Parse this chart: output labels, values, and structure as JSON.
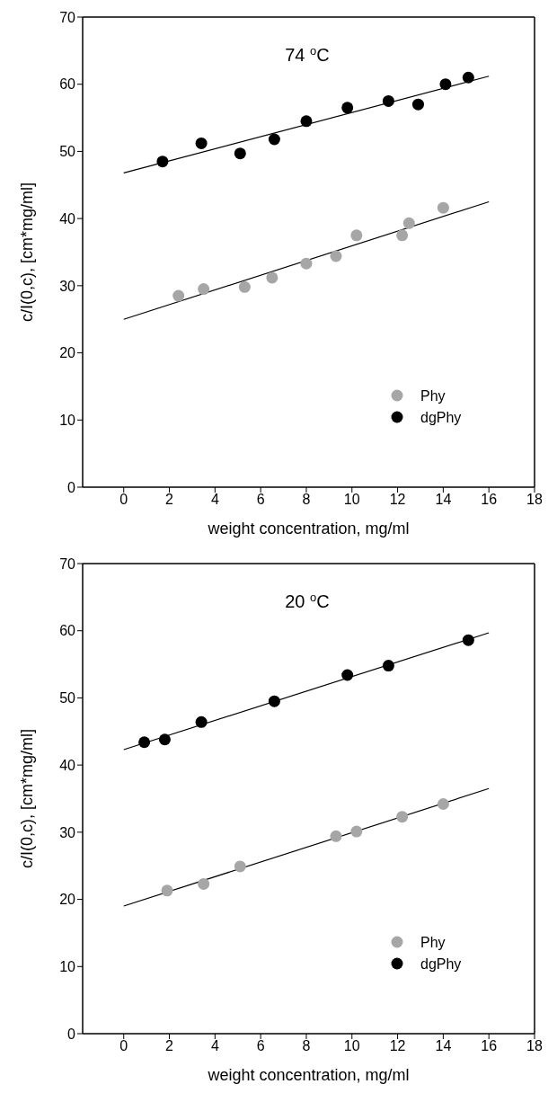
{
  "chart_data": [
    {
      "type": "scatter",
      "title": "74 $^{o}$C",
      "xlabel": "weight concentration, mg/ml",
      "ylabel": "c/I(0,c), [cm*mg/ml]",
      "xlim": [
        -1.8,
        18
      ],
      "xticks": [
        0,
        2,
        4,
        6,
        8,
        10,
        12,
        14,
        16,
        18
      ],
      "ylim": [
        0,
        70
      ],
      "yticks": [
        0,
        10,
        20,
        30,
        40,
        50,
        60,
        70
      ],
      "grid": false,
      "legend": "bottom right",
      "series": [
        {
          "name": "Phy",
          "marker": "circle",
          "color": "#a6a6a6",
          "x": [
            2.4,
            3.5,
            5.3,
            6.5,
            8,
            9.3,
            10.2,
            12.2,
            12.5,
            14
          ],
          "values": [
            28.5,
            29.5,
            29.8,
            31.2,
            33.3,
            34.4,
            37.5,
            37.5,
            39.3,
            41.6
          ]
        },
        {
          "name": "dgPhy",
          "marker": "circle",
          "color": "#000000",
          "x": [
            1.7,
            3.4,
            5.1,
            6.6,
            8,
            9.8,
            11.6,
            12.9,
            14.1,
            15.1
          ],
          "values": [
            48.5,
            51.2,
            49.7,
            51.8,
            54.5,
            56.5,
            57.5,
            57,
            60,
            61
          ]
        },
        {
          "type": "line",
          "marker": "none",
          "color": "#000000",
          "x": [
            0,
            16
          ],
          "values": [
            25,
            42.5
          ]
        },
        {
          "type": "line",
          "marker": "none",
          "color": "#000000",
          "x": [
            0,
            16
          ],
          "values": [
            46.8,
            61.2
          ]
        }
      ]
    },
    {
      "type": "scatter",
      "title": "20 $^{o}$C",
      "xlabel": "weight concentration, mg/ml",
      "ylabel": "c/I(0,c), [cm*mg/ml]",
      "xlim": [
        -1.8,
        18
      ],
      "xticks": [
        0,
        2,
        4,
        6,
        8,
        10,
        12,
        14,
        16,
        18
      ],
      "ylim": [
        0,
        70
      ],
      "yticks": [
        0,
        10,
        20,
        30,
        40,
        50,
        60,
        70
      ],
      "grid": false,
      "legend": "bottom right",
      "series": [
        {
          "name": "Phy",
          "marker": "circle",
          "color": "#a6a6a6",
          "x": [
            1.9,
            3.5,
            5.1,
            9.3,
            10.2,
            12.2,
            14
          ],
          "values": [
            21.3,
            22.3,
            24.9,
            29.4,
            30.1,
            32.3,
            34.2
          ]
        },
        {
          "name": "dgPhy",
          "marker": "circle",
          "color": "#000000",
          "x": [
            0.9,
            1.8,
            3.4,
            6.6,
            9.8,
            11.6,
            15.1
          ],
          "values": [
            43.4,
            43.8,
            46.4,
            49.5,
            53.4,
            54.8,
            58.6
          ]
        },
        {
          "type": "line",
          "marker": "none",
          "color": "#000000",
          "x": [
            0,
            16
          ],
          "values": [
            19,
            36.5
          ]
        },
        {
          "type": "line",
          "marker": "none",
          "color": "#000000",
          "x": [
            0,
            16
          ],
          "values": [
            42.3,
            59.7
          ]
        }
      ]
    }
  ]
}
